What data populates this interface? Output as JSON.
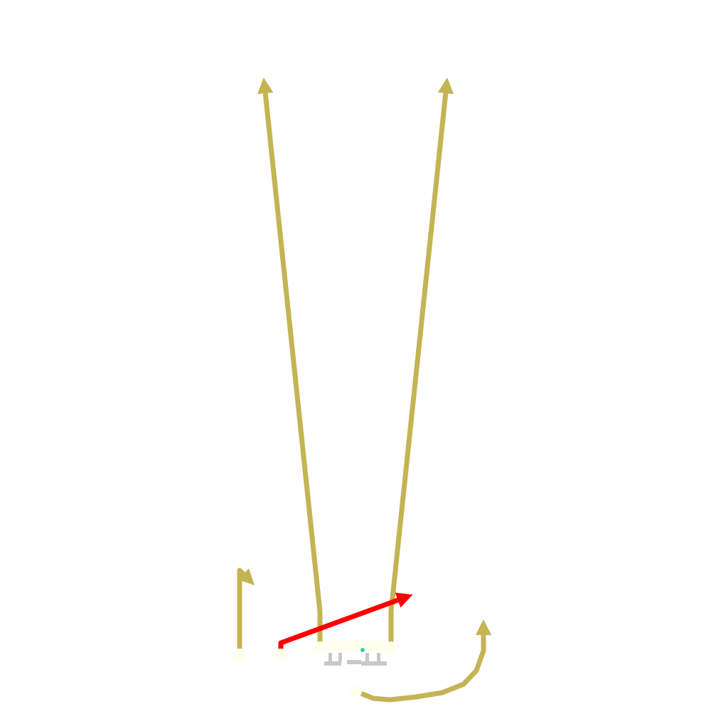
{
  "diagram": {
    "kind": "football-play",
    "colors": {
      "route": "#c4b454",
      "highlight_route": "#ff0000",
      "player": "#ffffee",
      "lineman_marker": "#c8c8c8",
      "ball": "#2dd4a0",
      "background": "#ffffff"
    },
    "players": [
      {
        "id": "wr-left",
        "role": "receiver"
      },
      {
        "id": "slot-left",
        "role": "receiver",
        "route": "highlight"
      },
      {
        "id": "te-left",
        "role": "receiver"
      },
      {
        "id": "ol-1",
        "role": "lineman"
      },
      {
        "id": "ol-2",
        "role": "lineman"
      },
      {
        "id": "center",
        "role": "lineman"
      },
      {
        "id": "ol-4",
        "role": "lineman"
      },
      {
        "id": "te-right",
        "role": "receiver"
      },
      {
        "id": "qb",
        "role": "quarterback"
      }
    ],
    "routes": [
      {
        "id": "route-hitch-left",
        "style": "hitch",
        "highlight": false
      },
      {
        "id": "route-drag",
        "style": "drag",
        "highlight": true
      },
      {
        "id": "route-seam-left",
        "style": "seam",
        "highlight": false
      },
      {
        "id": "route-seam-right",
        "style": "seam",
        "highlight": false
      },
      {
        "id": "route-wheel",
        "style": "wheel",
        "highlight": false
      }
    ]
  }
}
